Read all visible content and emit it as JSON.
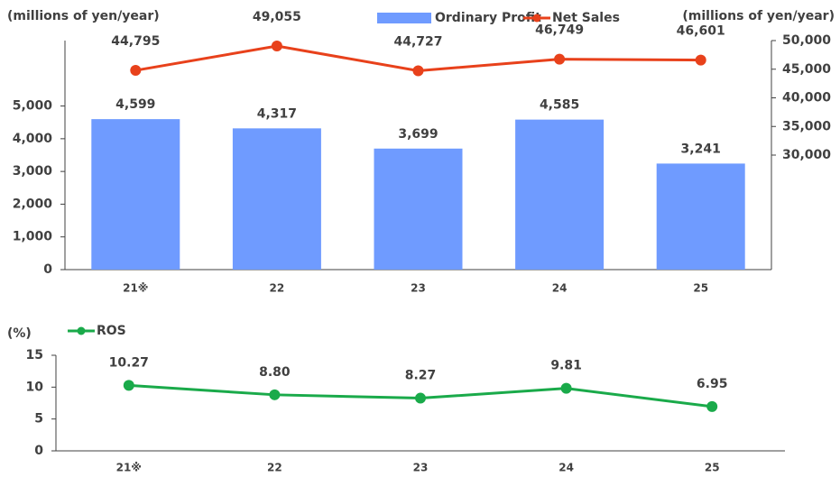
{
  "chart_data": [
    {
      "type": "bar",
      "ylabel": "(millions of yen/year)",
      "y2label": "(millions of yen/year)",
      "categories": [
        "21※",
        "22",
        "23",
        "24",
        "25"
      ],
      "series": [
        {
          "name": "Ordinary Profit",
          "type": "bar",
          "color": "#6f9bff",
          "values": [
            4599,
            4317,
            3699,
            4585,
            3241
          ],
          "value_labels": [
            "4,599",
            "4,317",
            "3,699",
            "4,585",
            "3,241"
          ]
        },
        {
          "name": "Net Sales",
          "type": "line",
          "axis": "y2",
          "color": "#e8411b",
          "values": [
            44795,
            49055,
            44727,
            46749,
            46601
          ],
          "value_labels": [
            "44,795",
            "49,055",
            "44,727",
            "46,749",
            "46,601"
          ]
        }
      ],
      "ylim": [
        0,
        7000
      ],
      "yticks": [
        0,
        {
          "value": 1000,
          "label": "1,000"
        },
        {
          "value": 2000,
          "label": "2,000"
        },
        {
          "value": 3000,
          "label": "3,000"
        },
        {
          "value": 4000,
          "label": "4,000"
        },
        {
          "value": 5000,
          "label": "5,000"
        }
      ],
      "y2lim": [
        10000,
        50000
      ],
      "y2ticks": [
        {
          "value": 30000,
          "label": "30,000"
        },
        {
          "value": 35000,
          "label": "35,000"
        },
        {
          "value": 40000,
          "label": "40,000"
        },
        {
          "value": 45000,
          "label": "45,000"
        },
        {
          "value": 50000,
          "label": "50,000"
        }
      ]
    },
    {
      "type": "line",
      "ylabel": "(%)",
      "categories": [
        "21※",
        "22",
        "23",
        "24",
        "25"
      ],
      "series": [
        {
          "name": "ROS",
          "type": "line",
          "color": "#1aaa4a",
          "values": [
            10.27,
            8.8,
            8.27,
            9.81,
            6.95
          ],
          "value_labels": [
            "10.27",
            "8.80",
            "8.27",
            "9.81",
            "6.95"
          ]
        }
      ],
      "ylim": [
        0,
        15
      ],
      "yticks": [
        0,
        5,
        10,
        15
      ]
    }
  ]
}
